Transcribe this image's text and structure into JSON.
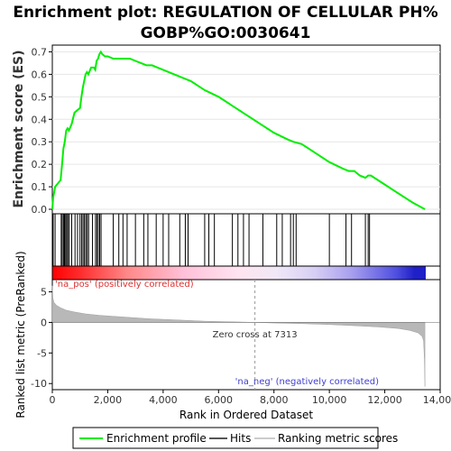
{
  "chart_data": {
    "type": "line",
    "title_line1": "Enrichment plot: REGULATION OF CELLULAR PH%",
    "title_line2": "GOBP%GO:0030641",
    "xlabel": "Rank in Ordered Dataset",
    "ylabel_es": "Enrichment score (ES)",
    "ylabel_metric": "Ranked list metric (PreRanked)",
    "xlim": [
      0,
      14000
    ],
    "es_ylim": [
      -0.02,
      0.73
    ],
    "metric_ylim": [
      -11,
      7
    ],
    "x_ticks": [
      0,
      2000,
      4000,
      6000,
      8000,
      10000,
      12000,
      14000
    ],
    "x_tick_labels": [
      "0",
      "2,000",
      "4,000",
      "6,000",
      "8,000",
      "10,000",
      "12,000",
      "14,000"
    ],
    "es_ticks": [
      0.0,
      0.1,
      0.2,
      0.3,
      0.4,
      0.5,
      0.6,
      0.7
    ],
    "es_tick_labels": [
      "0.0",
      "0.1",
      "0.2",
      "0.3",
      "0.4",
      "0.5",
      "0.6",
      "0.7"
    ],
    "metric_ticks": [
      5,
      0,
      -5,
      -10
    ],
    "metric_tick_labels": [
      "5",
      "0",
      "-5",
      "-10"
    ],
    "zero_cross_rank": 7313,
    "zero_cross_label": "Zero cross at 7313",
    "pos_label": "'na_pos' (positively correlated)",
    "neg_label": "'na_neg' (negatively correlated)",
    "max_rank": 13450,
    "series": [
      {
        "name": "Enrichment profile",
        "color": "#00ee00",
        "x": [
          0,
          30,
          100,
          300,
          350,
          400,
          450,
          500,
          550,
          600,
          700,
          800,
          900,
          1000,
          1050,
          1100,
          1150,
          1200,
          1250,
          1300,
          1400,
          1500,
          1550,
          1600,
          1650,
          1700,
          1750,
          1800,
          1900,
          2000,
          2200,
          2400,
          2600,
          2800,
          3000,
          3200,
          3400,
          3600,
          3800,
          4000,
          4200,
          4400,
          4600,
          4800,
          5000,
          5500,
          6000,
          6500,
          7000,
          7500,
          8000,
          8500,
          8700,
          9000,
          9500,
          10000,
          10500,
          10700,
          10900,
          11100,
          11300,
          11400,
          11500,
          12000,
          12500,
          13000,
          13450
        ],
        "y": [
          0.0,
          0.05,
          0.1,
          0.13,
          0.2,
          0.27,
          0.3,
          0.35,
          0.36,
          0.35,
          0.38,
          0.43,
          0.44,
          0.45,
          0.5,
          0.54,
          0.57,
          0.6,
          0.61,
          0.6,
          0.63,
          0.63,
          0.62,
          0.66,
          0.67,
          0.69,
          0.7,
          0.69,
          0.68,
          0.68,
          0.67,
          0.67,
          0.67,
          0.67,
          0.66,
          0.65,
          0.64,
          0.64,
          0.63,
          0.62,
          0.61,
          0.6,
          0.59,
          0.58,
          0.57,
          0.53,
          0.5,
          0.46,
          0.42,
          0.38,
          0.34,
          0.31,
          0.3,
          0.29,
          0.25,
          0.21,
          0.18,
          0.17,
          0.17,
          0.15,
          0.14,
          0.15,
          0.15,
          0.11,
          0.07,
          0.03,
          0.0
        ]
      },
      {
        "name": "Hits",
        "color": "#000000",
        "x": [
          30,
          100,
          320,
          360,
          410,
          440,
          480,
          520,
          560,
          610,
          700,
          820,
          910,
          1000,
          1060,
          1110,
          1160,
          1210,
          1260,
          1310,
          1450,
          1560,
          1610,
          1660,
          1710,
          1760,
          2200,
          2400,
          2550,
          2700,
          3000,
          3300,
          3450,
          3750,
          4000,
          4200,
          4600,
          4800,
          4900,
          5500,
          5650,
          5850,
          6500,
          6700,
          6900,
          7100,
          7600,
          8100,
          8300,
          8600,
          8700,
          8800,
          10000,
          10600,
          10800,
          11300,
          11400,
          11450
        ]
      },
      {
        "name": "Ranking metric scores",
        "color": "#b0b0b0",
        "x": [
          0,
          20,
          60,
          150,
          300,
          500,
          800,
          1200,
          1700,
          2500,
          3500,
          4500,
          5500,
          6500,
          7313,
          8000,
          9000,
          10000,
          11000,
          11800,
          12500,
          12900,
          13200,
          13350,
          13400,
          13430,
          13450
        ],
        "y": [
          6.0,
          4.0,
          3.3,
          2.8,
          2.4,
          2.0,
          1.7,
          1.4,
          1.15,
          0.9,
          0.6,
          0.4,
          0.2,
          0.1,
          0.0,
          -0.1,
          -0.2,
          -0.35,
          -0.55,
          -0.75,
          -1.0,
          -1.3,
          -1.7,
          -2.3,
          -3.0,
          -6.0,
          -10.5
        ]
      }
    ],
    "legend": [
      {
        "label": "Enrichment profile",
        "color": "#00ee00"
      },
      {
        "label": "Hits",
        "color": "#555555"
      },
      {
        "label": "Ranking metric scores",
        "color": "#cccccc"
      }
    ]
  }
}
